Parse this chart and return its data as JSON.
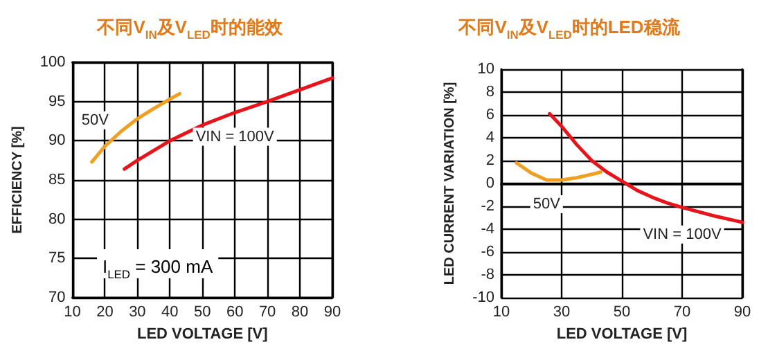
{
  "chart_data": [
    {
      "type": "line",
      "title": "不同V$_{IN}$及V$_{LED}$时的能效",
      "xlabel": "LED VOLTAGE [V]",
      "ylabel": "EFFICIENCY [%]",
      "xlim": [
        10,
        90
      ],
      "xticks": [
        10,
        20,
        30,
        40,
        50,
        60,
        70,
        80,
        90
      ],
      "ylim": [
        70,
        100
      ],
      "yticks": [
        70,
        75,
        80,
        85,
        90,
        95,
        100
      ],
      "grid": true,
      "legend": false,
      "marker": "none",
      "line_style": "solid",
      "annotations": [
        "I$_{LED}$ = 300 mA"
      ],
      "series": [
        {
          "name": "50V",
          "color": "#f0a020",
          "x": [
            16,
            20,
            25,
            30,
            35,
            40,
            43
          ],
          "values": [
            87.3,
            89.3,
            91.2,
            92.8,
            94.1,
            95.3,
            96
          ]
        },
        {
          "name": "VIN = 100V",
          "color": "#e8141c",
          "x": [
            26,
            30,
            40,
            50,
            60,
            70,
            80,
            90
          ],
          "values": [
            86.4,
            87.5,
            90,
            92,
            93.6,
            95,
            96.5,
            98
          ]
        }
      ]
    },
    {
      "type": "line",
      "title": "不同V$_{IN}$及V$_{LED}$时的LED稳流",
      "xlabel": "LED VOLTAGE [V]",
      "ylabel": "LED CURRENT VARIATION [%]",
      "xlim": [
        10,
        90
      ],
      "xticks": [
        10,
        30,
        50,
        70,
        90
      ],
      "ylim": [
        -10,
        10
      ],
      "yticks": [
        -10,
        -8,
        -6,
        -4,
        -2,
        0,
        2,
        4,
        6,
        8,
        10
      ],
      "grid": true,
      "legend": false,
      "marker": "none",
      "line_style": "solid",
      "series": [
        {
          "name": "50V",
          "color": "#f0a020",
          "x": [
            15,
            20,
            25,
            30,
            35,
            40,
            43
          ],
          "values": [
            1.8,
            0.9,
            0.3,
            0.3,
            0.5,
            0.8,
            1.0
          ]
        },
        {
          "name": "VIN = 100V",
          "color": "#e8141c",
          "x": [
            26,
            30,
            35,
            40,
            45,
            50,
            55,
            60,
            65,
            70,
            80,
            90
          ],
          "values": [
            6.1,
            5.0,
            3.4,
            2.0,
            1.0,
            0.2,
            -0.6,
            -1.2,
            -1.7,
            -2.1,
            -2.8,
            -3.4
          ]
        }
      ]
    }
  ]
}
